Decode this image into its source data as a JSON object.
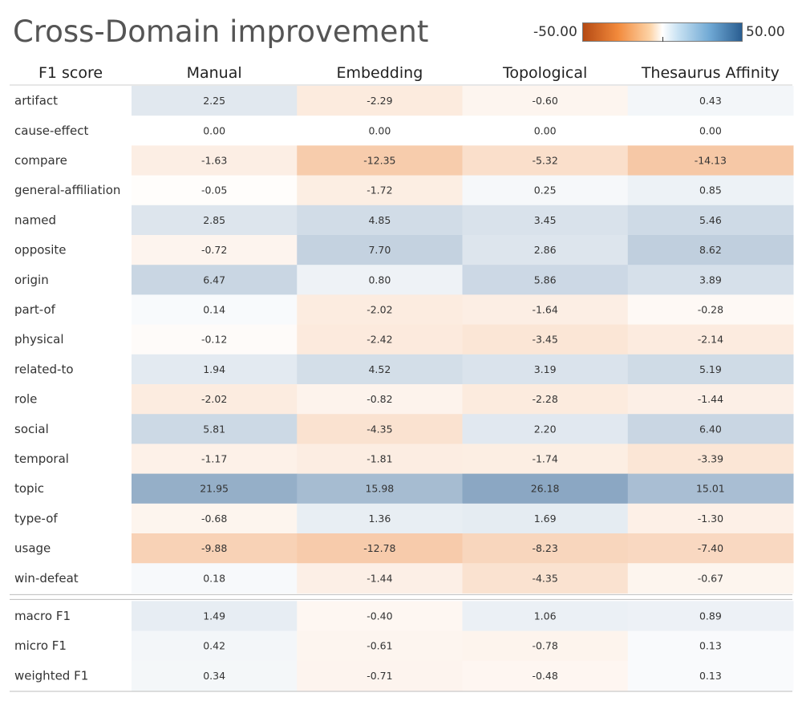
{
  "chart_data": {
    "type": "heatmap",
    "title": "Cross-Domain improvement",
    "row_header": "F1 score",
    "columns": [
      "Manual",
      "Embedding",
      "Topological",
      "Thesaurus Affinity"
    ],
    "color_scale": {
      "min": -50.0,
      "max": 50.0,
      "min_label": "-50.00",
      "max_label": "50.00",
      "negative_color": "#e8711a",
      "positive_color": "#2a5e91",
      "neutral_color": "#ffffff"
    },
    "rows": [
      {
        "label": "artifact",
        "values": [
          2.25,
          -2.29,
          -0.6,
          0.43
        ]
      },
      {
        "label": "cause-effect",
        "values": [
          0.0,
          0.0,
          0.0,
          0.0
        ]
      },
      {
        "label": "compare",
        "values": [
          -1.63,
          -12.35,
          -5.32,
          -14.13
        ]
      },
      {
        "label": "general-affiliation",
        "values": [
          -0.05,
          -1.72,
          0.25,
          0.85
        ]
      },
      {
        "label": "named",
        "values": [
          2.85,
          4.85,
          3.45,
          5.46
        ]
      },
      {
        "label": "opposite",
        "values": [
          -0.72,
          7.7,
          2.86,
          8.62
        ]
      },
      {
        "label": "origin",
        "values": [
          6.47,
          0.8,
          5.86,
          3.89
        ]
      },
      {
        "label": "part-of",
        "values": [
          0.14,
          -2.02,
          -1.64,
          -0.28
        ]
      },
      {
        "label": "physical",
        "values": [
          -0.12,
          -2.42,
          -3.45,
          -2.14
        ]
      },
      {
        "label": "related-to",
        "values": [
          1.94,
          4.52,
          3.19,
          5.19
        ]
      },
      {
        "label": "role",
        "values": [
          -2.02,
          -0.82,
          -2.28,
          -1.44
        ]
      },
      {
        "label": "social",
        "values": [
          5.81,
          -4.35,
          2.2,
          6.4
        ]
      },
      {
        "label": "temporal",
        "values": [
          -1.17,
          -1.81,
          -1.74,
          -3.39
        ]
      },
      {
        "label": "topic",
        "values": [
          21.95,
          15.98,
          26.18,
          15.01
        ]
      },
      {
        "label": "type-of",
        "values": [
          -0.68,
          1.36,
          1.69,
          -1.3
        ]
      },
      {
        "label": "usage",
        "values": [
          -9.88,
          -12.78,
          -8.23,
          -7.4
        ]
      },
      {
        "label": "win-defeat",
        "values": [
          0.18,
          -1.44,
          -4.35,
          -0.67
        ]
      }
    ],
    "summary_rows": [
      {
        "label": "macro F1",
        "values": [
          1.49,
          -0.4,
          1.06,
          0.89
        ]
      },
      {
        "label": "micro F1",
        "values": [
          0.42,
          -0.61,
          -0.78,
          0.13
        ]
      },
      {
        "label": "weighted F1",
        "values": [
          0.34,
          -0.71,
          -0.48,
          0.13
        ]
      }
    ]
  }
}
